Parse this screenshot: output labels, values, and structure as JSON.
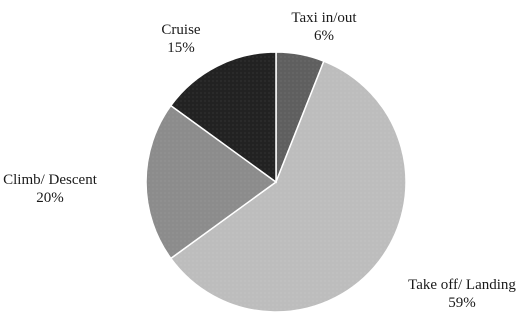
{
  "chart_data": {
    "type": "pie",
    "title": "",
    "start_angle_deg": 0,
    "direction": "clockwise",
    "slices": [
      {
        "label": "Taxi in/out",
        "value": 6,
        "value_label": "6%",
        "color": "#5f5f5f"
      },
      {
        "label": "Take off/ Landing",
        "value": 59,
        "value_label": "59%",
        "color": "#bdbdbd"
      },
      {
        "label": "Climb/  Descent",
        "value": 20,
        "value_label": "20%",
        "color": "#8c8c8c"
      },
      {
        "label": "Cruise",
        "value": 15,
        "value_label": "15%",
        "color": "#222222"
      }
    ]
  }
}
